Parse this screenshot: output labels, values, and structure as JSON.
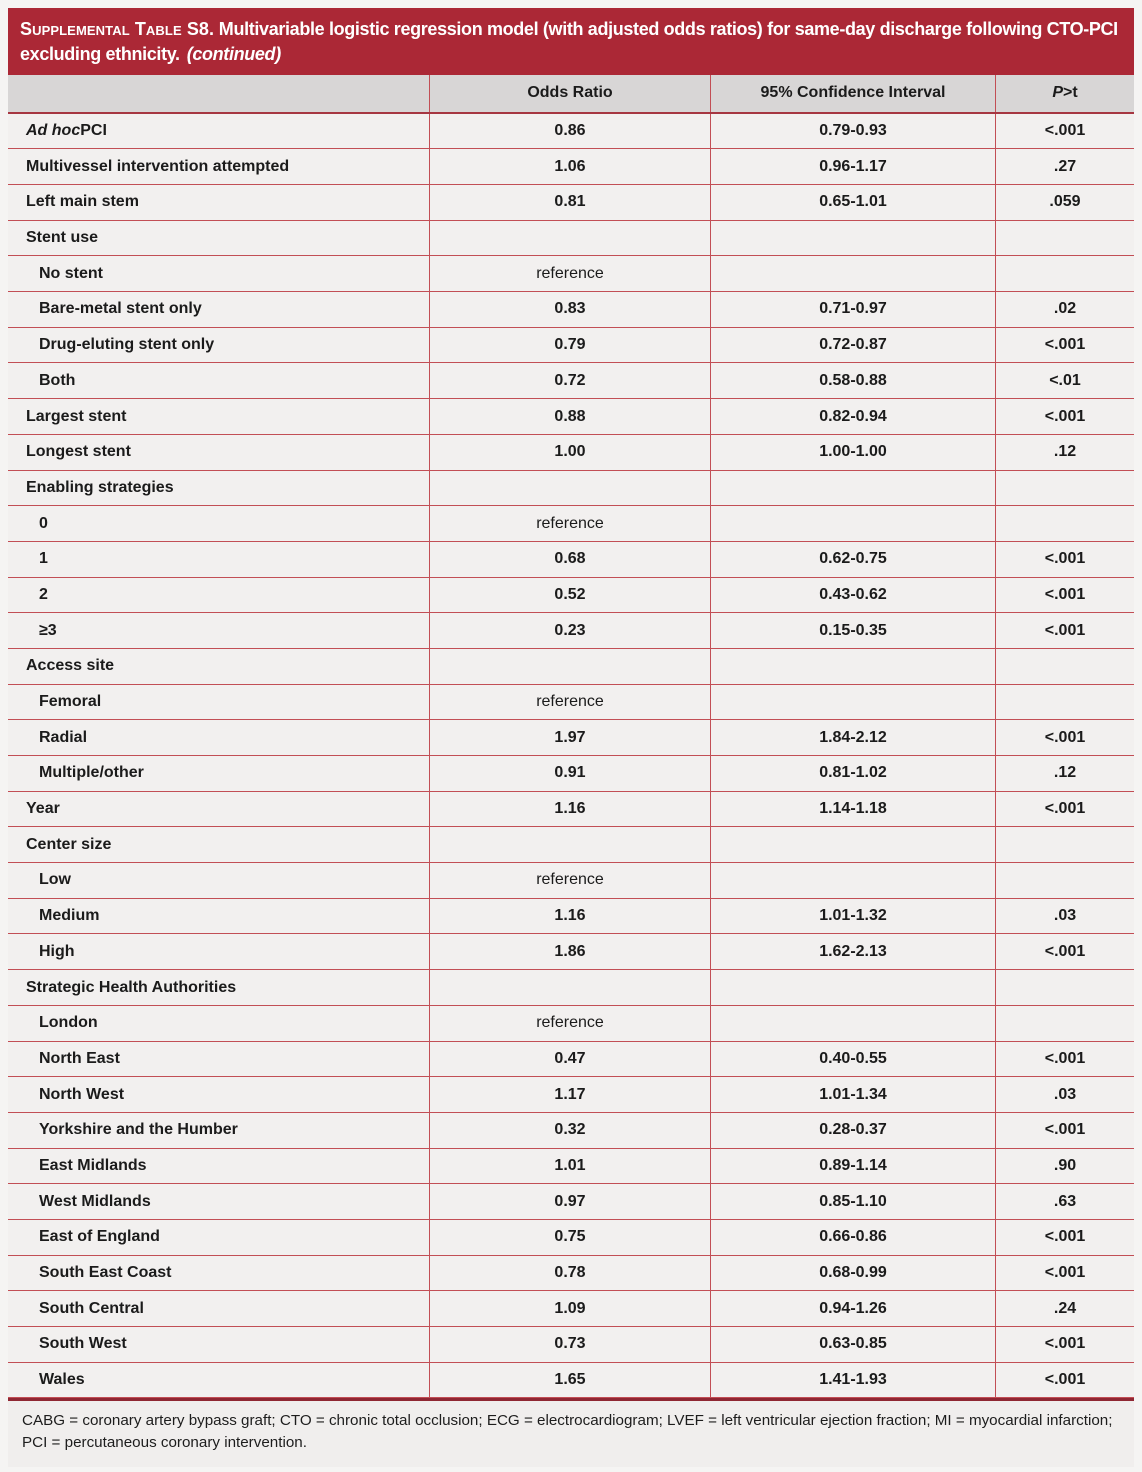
{
  "title": {
    "label_smallcaps": "Supplemental Table S8.",
    "text": " Multivariable logistic regression model (with adjusted odds ratios) for same-day discharge following CTO-PCI excluding ethnicity.",
    "continued": "(continued)"
  },
  "colors": {
    "accent_red": "#ab2836",
    "border_red": "#c24e55",
    "dark_red_rule": "#8f2733",
    "header_gray": "#d8d6d6",
    "row_bg": "#f2f0ef"
  },
  "table": {
    "headers": {
      "label": "",
      "odds_ratio": "Odds Ratio",
      "confidence_interval": "95% Confidence Interval",
      "p_italic": "P",
      "p_rest": ">t"
    },
    "rows": [
      {
        "italic": "Ad hoc",
        "label": " PCI",
        "indent": 0,
        "or": "0.86",
        "ci": "0.79-0.93",
        "p": "<.001"
      },
      {
        "italic": "",
        "label": "Multivessel intervention attempted",
        "indent": 0,
        "or": "1.06",
        "ci": "0.96-1.17",
        "p": ".27"
      },
      {
        "italic": "",
        "label": "Left main stem",
        "indent": 0,
        "or": "0.81",
        "ci": "0.65-1.01",
        "p": ".059"
      },
      {
        "italic": "",
        "label": "Stent use",
        "indent": 0,
        "or": "",
        "ci": "",
        "p": ""
      },
      {
        "italic": "",
        "label": "No stent",
        "indent": 1,
        "or": "reference",
        "ci": "",
        "p": ""
      },
      {
        "italic": "",
        "label": "Bare-metal stent only",
        "indent": 1,
        "or": "0.83",
        "ci": "0.71-0.97",
        "p": ".02"
      },
      {
        "italic": "",
        "label": "Drug-eluting stent only",
        "indent": 1,
        "or": "0.79",
        "ci": "0.72-0.87",
        "p": "<.001"
      },
      {
        "italic": "",
        "label": "Both",
        "indent": 1,
        "or": "0.72",
        "ci": "0.58-0.88",
        "p": "<.01"
      },
      {
        "italic": "",
        "label": "Largest stent",
        "indent": 0,
        "or": "0.88",
        "ci": "0.82-0.94",
        "p": "<.001"
      },
      {
        "italic": "",
        "label": "Longest stent",
        "indent": 0,
        "or": "1.00",
        "ci": "1.00-1.00",
        "p": ".12"
      },
      {
        "italic": "",
        "label": "Enabling strategies",
        "indent": 0,
        "or": "",
        "ci": "",
        "p": ""
      },
      {
        "italic": "",
        "label": "0",
        "indent": 1,
        "or": "reference",
        "ci": "",
        "p": ""
      },
      {
        "italic": "",
        "label": "1",
        "indent": 1,
        "or": "0.68",
        "ci": "0.62-0.75",
        "p": "<.001"
      },
      {
        "italic": "",
        "label": "2",
        "indent": 1,
        "or": "0.52",
        "ci": "0.43-0.62",
        "p": "<.001"
      },
      {
        "italic": "",
        "label": "≥3",
        "indent": 1,
        "or": "0.23",
        "ci": "0.15-0.35",
        "p": "<.001"
      },
      {
        "italic": "",
        "label": "Access site",
        "indent": 0,
        "or": "",
        "ci": "",
        "p": ""
      },
      {
        "italic": "",
        "label": "Femoral",
        "indent": 1,
        "or": "reference",
        "ci": "",
        "p": ""
      },
      {
        "italic": "",
        "label": "Radial",
        "indent": 1,
        "or": "1.97",
        "ci": "1.84-2.12",
        "p": "<.001"
      },
      {
        "italic": "",
        "label": "Multiple/other",
        "indent": 1,
        "or": "0.91",
        "ci": "0.81-1.02",
        "p": ".12"
      },
      {
        "italic": "",
        "label": "Year",
        "indent": 0,
        "or": "1.16",
        "ci": "1.14-1.18",
        "p": "<.001"
      },
      {
        "italic": "",
        "label": "Center size",
        "indent": 0,
        "or": "",
        "ci": "",
        "p": ""
      },
      {
        "italic": "",
        "label": "Low",
        "indent": 1,
        "or": "reference",
        "ci": "",
        "p": ""
      },
      {
        "italic": "",
        "label": "Medium",
        "indent": 1,
        "or": "1.16",
        "ci": "1.01-1.32",
        "p": ".03"
      },
      {
        "italic": "",
        "label": "High",
        "indent": 1,
        "or": "1.86",
        "ci": "1.62-2.13",
        "p": "<.001"
      },
      {
        "italic": "",
        "label": "Strategic Health Authorities",
        "indent": 0,
        "or": "",
        "ci": "",
        "p": ""
      },
      {
        "italic": "",
        "label": "London",
        "indent": 1,
        "or": "reference",
        "ci": "",
        "p": ""
      },
      {
        "italic": "",
        "label": "North East",
        "indent": 1,
        "or": "0.47",
        "ci": "0.40-0.55",
        "p": "<.001"
      },
      {
        "italic": "",
        "label": "North West",
        "indent": 1,
        "or": "1.17",
        "ci": "1.01-1.34",
        "p": ".03"
      },
      {
        "italic": "",
        "label": "Yorkshire and the Humber",
        "indent": 1,
        "or": "0.32",
        "ci": "0.28-0.37",
        "p": "<.001"
      },
      {
        "italic": "",
        "label": "East Midlands",
        "indent": 1,
        "or": "1.01",
        "ci": "0.89-1.14",
        "p": ".90"
      },
      {
        "italic": "",
        "label": "West Midlands",
        "indent": 1,
        "or": "0.97",
        "ci": "0.85-1.10",
        "p": ".63"
      },
      {
        "italic": "",
        "label": "East of England",
        "indent": 1,
        "or": "0.75",
        "ci": "0.66-0.86",
        "p": "<.001"
      },
      {
        "italic": "",
        "label": "South East Coast",
        "indent": 1,
        "or": "0.78",
        "ci": "0.68-0.99",
        "p": "<.001"
      },
      {
        "italic": "",
        "label": "South Central",
        "indent": 1,
        "or": "1.09",
        "ci": "0.94-1.26",
        "p": ".24"
      },
      {
        "italic": "",
        "label": "South West",
        "indent": 1,
        "or": "0.73",
        "ci": "0.63-0.85",
        "p": "<.001"
      },
      {
        "italic": "",
        "label": "Wales",
        "indent": 1,
        "or": "1.65",
        "ci": "1.41-1.93",
        "p": "<.001"
      }
    ]
  },
  "footnote": "CABG = coronary artery bypass graft; CTO = chronic total occlusion; ECG = electrocardiogram; LVEF = left ventricular ejection fraction; MI = myocardial infarction; PCI = percutaneous coronary intervention."
}
